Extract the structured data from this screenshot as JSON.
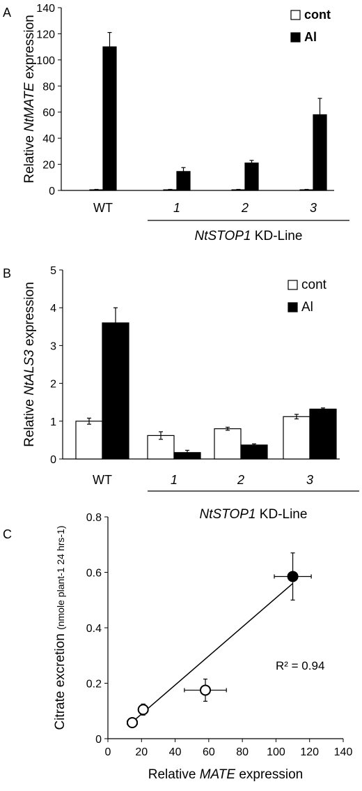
{
  "chart_data": [
    {
      "panel": "A",
      "type": "bar",
      "title": "",
      "ylabel_parts": [
        "Relative ",
        "NtMATE",
        " expression"
      ],
      "ylim": [
        0,
        140
      ],
      "yticks": [
        0,
        20,
        40,
        60,
        80,
        100,
        120,
        140
      ],
      "categories": [
        "WT",
        "1",
        "2",
        "3"
      ],
      "group_label_parts": [
        "NtSTOP1",
        " KD-Line"
      ],
      "series": [
        {
          "name": "cont",
          "values": [
            0.5,
            0.5,
            0.5,
            0.5
          ],
          "errors": [
            0.3,
            0.3,
            0.3,
            0.3
          ]
        },
        {
          "name": "Al",
          "values": [
            110,
            14.5,
            21,
            58
          ],
          "errors": [
            11,
            3,
            2,
            12.5
          ]
        }
      ],
      "legend_position": "top-right",
      "legend_bold": true
    },
    {
      "panel": "B",
      "type": "bar",
      "title": "",
      "ylabel_parts": [
        "Relative ",
        "NtALS3",
        "  expression"
      ],
      "ylim": [
        0,
        5
      ],
      "yticks": [
        0,
        1,
        2,
        3,
        4,
        5
      ],
      "categories": [
        "WT",
        "1",
        "2",
        "3"
      ],
      "group_label_parts": [
        "NtSTOP1",
        " KD-Line"
      ],
      "series": [
        {
          "name": "cont",
          "values": [
            1.0,
            0.62,
            0.8,
            1.12
          ],
          "errors": [
            0.08,
            0.1,
            0.04,
            0.06
          ]
        },
        {
          "name": "Al",
          "values": [
            3.6,
            0.17,
            0.37,
            1.32
          ],
          "errors": [
            0.4,
            0.06,
            0.03,
            0.03
          ]
        }
      ],
      "legend_position": "top-right",
      "legend_bold": false
    },
    {
      "panel": "C",
      "type": "scatter",
      "title": "",
      "ylabel": "Citrate excretion",
      "ylabel_unit": "(nmole plant-1 24 hrs-1)",
      "xlabel_parts": [
        "Relative ",
        "MATE",
        " expression"
      ],
      "xlim": [
        0,
        140
      ],
      "ylim": [
        0,
        0.8
      ],
      "xticks": [
        0,
        20,
        40,
        60,
        80,
        100,
        120,
        140
      ],
      "yticks": [
        0,
        0.2,
        0.4,
        0.6,
        0.8
      ],
      "points": [
        {
          "x": 110,
          "y": 0.585,
          "xerr": 11,
          "yerr": 0.085,
          "filled": true
        },
        {
          "x": 58,
          "y": 0.175,
          "xerr": 12.5,
          "yerr": 0.04,
          "filled": false
        },
        {
          "x": 21,
          "y": 0.105,
          "xerr": 2,
          "yerr": 0.02,
          "filled": false
        },
        {
          "x": 14.5,
          "y": 0.058,
          "xerr": 3,
          "yerr": 0.01,
          "filled": false
        }
      ],
      "trendline": {
        "x": [
          14.5,
          110
        ],
        "y": [
          0.06,
          0.56
        ]
      },
      "annotation": "R² = 0.94"
    }
  ],
  "panel_labels": [
    "A",
    "B",
    "C"
  ]
}
